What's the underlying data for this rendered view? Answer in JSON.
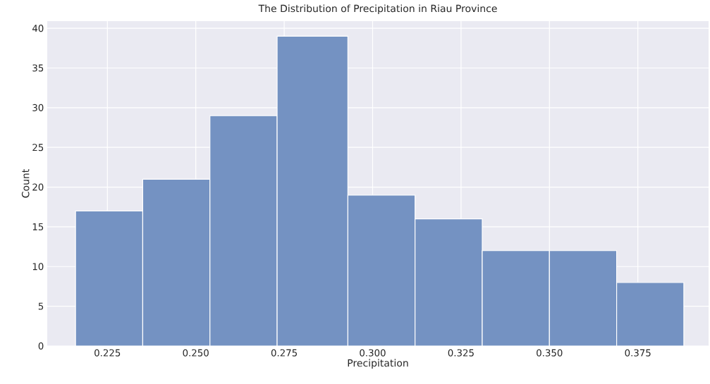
{
  "chart_data": {
    "type": "histogram",
    "title": "The Distribution of Precipitation in Riau Province",
    "xlabel": "Precipitation",
    "ylabel": "Count",
    "bins": [
      0.216,
      0.235,
      0.254,
      0.273,
      0.293,
      0.312,
      0.331,
      0.35,
      0.369,
      0.388
    ],
    "values": [
      17,
      21,
      29,
      39,
      19,
      16,
      12,
      12,
      8
    ],
    "color": "#7492c2",
    "xlim": [
      0.208,
      0.395
    ],
    "ylim": [
      0,
      40.9
    ],
    "xticks": [
      {
        "value": 0.225,
        "label": "0.225"
      },
      {
        "value": 0.25,
        "label": "0.250"
      },
      {
        "value": 0.275,
        "label": "0.275"
      },
      {
        "value": 0.3,
        "label": "0.300"
      },
      {
        "value": 0.325,
        "label": "0.325"
      },
      {
        "value": 0.35,
        "label": "0.350"
      },
      {
        "value": 0.375,
        "label": "0.375"
      }
    ],
    "yticks": [
      0,
      5,
      10,
      15,
      20,
      25,
      30,
      35,
      40
    ],
    "grid": true
  }
}
